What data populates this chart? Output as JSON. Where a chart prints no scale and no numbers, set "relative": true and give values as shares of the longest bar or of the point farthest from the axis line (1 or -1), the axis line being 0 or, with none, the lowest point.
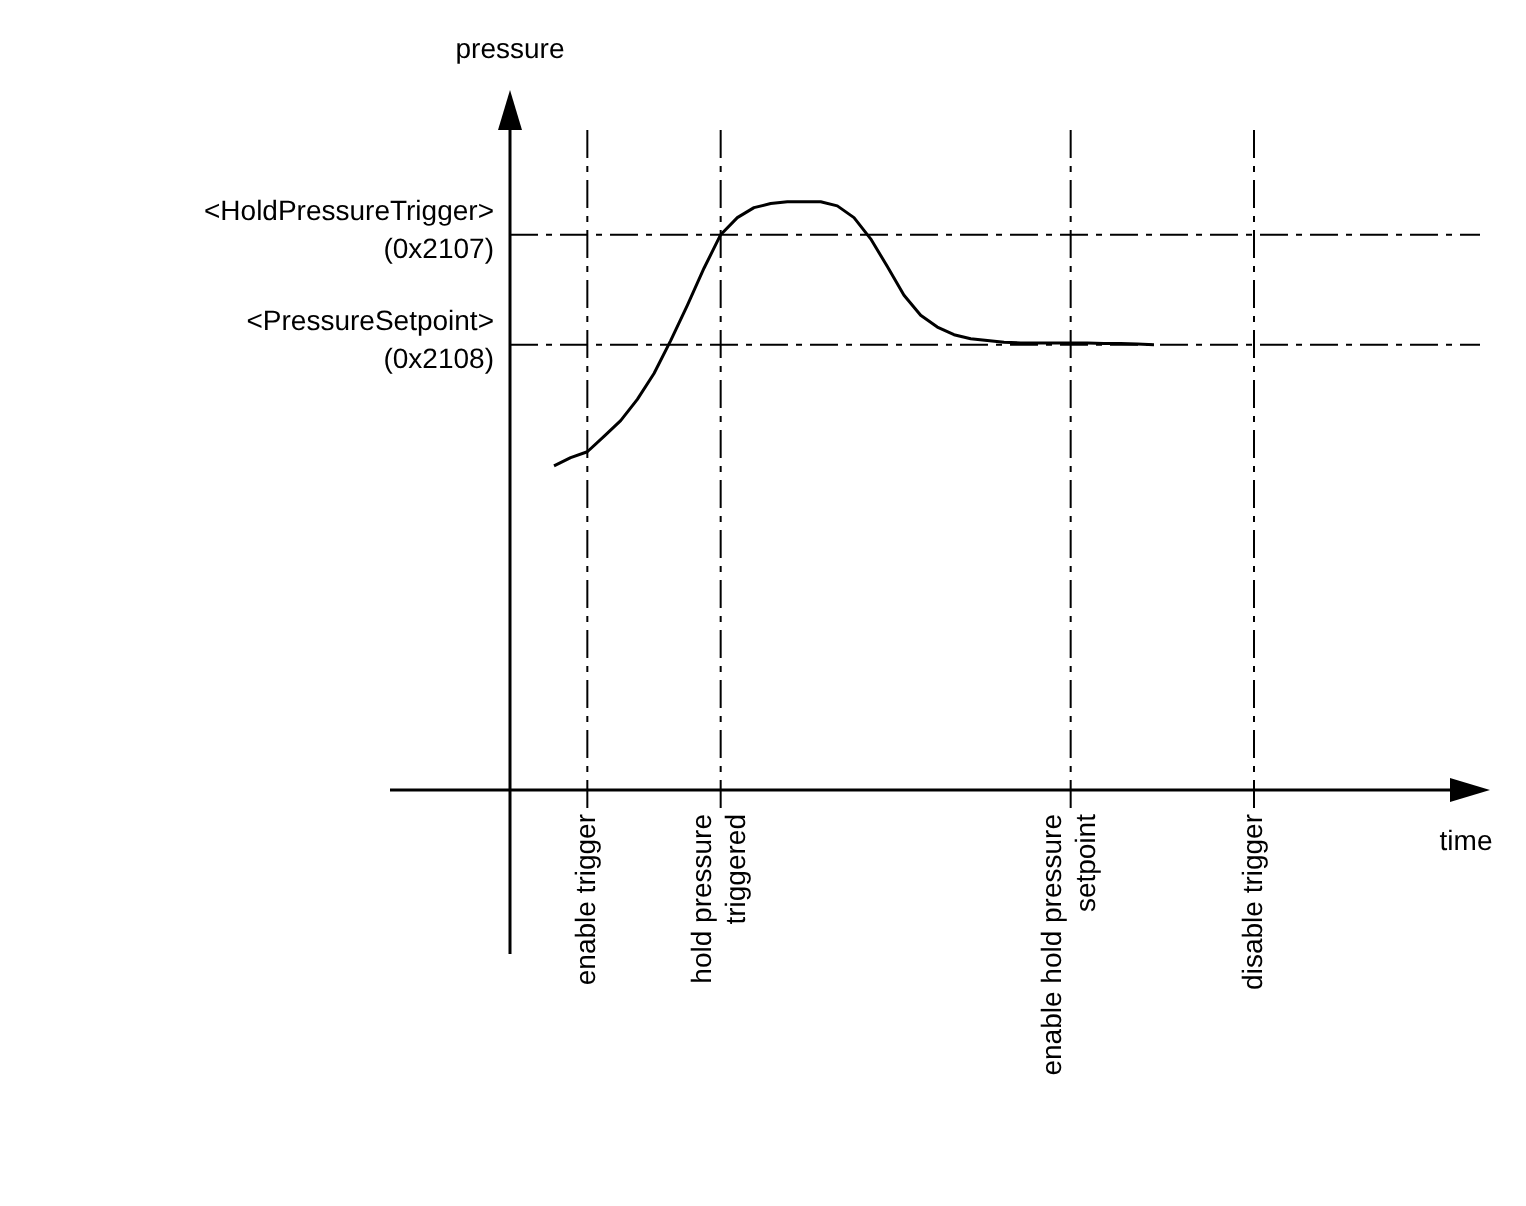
{
  "chart_data": {
    "type": "line",
    "relative": true,
    "legend": false,
    "marker": "none",
    "line_style": "solid",
    "annotations": [
      "pressure",
      "time"
    ],
    "categories": [
      null,
      null,
      "enable trigger",
      null,
      null,
      null,
      null,
      null,
      null,
      null,
      "hold pressure\ntriggered",
      null,
      null,
      null,
      null,
      null,
      null,
      null,
      null,
      null,
      null,
      null,
      null,
      null,
      null,
      null,
      null,
      null,
      null,
      null,
      null,
      "enable hold pressure\nsetpoint",
      null,
      null,
      null,
      null,
      null,
      null,
      null,
      null,
      null,
      null,
      "disable trigger"
    ],
    "series": [
      {
        "color": "#000000",
        "values": [
          0.551,
          0.565,
          0.575,
          0.601,
          0.628,
          0.664,
          0.708,
          0.764,
          0.824,
          0.887,
          0.944,
          0.973,
          0.99,
          0.997,
          1,
          1,
          1,
          0.993,
          0.973,
          0.937,
          0.89,
          0.841,
          0.807,
          0.787,
          0.774,
          0.767,
          0.764,
          0.761,
          0.76,
          0.76,
          0.76,
          0.76,
          0.76,
          0.759,
          0.759,
          0.758,
          0.757,
          null,
          null,
          null,
          null,
          null,
          null
        ]
      }
    ],
    "ref_lines": [
      {
        "axis": "y",
        "value": 0.944,
        "label": "<HoldPressureTrigger>\n(0x2107)",
        "line_style": "dashed",
        "color": "#000000"
      },
      {
        "axis": "y",
        "value": 0.757,
        "label": "<PressureSetpoint>\n(0x2108)",
        "line_style": "dashed",
        "color": "#000000"
      },
      {
        "axis": "x",
        "value": "enable trigger",
        "line_style": "dashed",
        "color": "#000000"
      },
      {
        "axis": "x",
        "value": "hold pressure\ntriggered",
        "line_style": "dashed",
        "color": "#000000"
      },
      {
        "axis": "x",
        "value": "enable hold pressure\nsetpoint",
        "line_style": "dashed",
        "color": "#000000"
      },
      {
        "axis": "x",
        "value": "disable trigger",
        "line_style": "dashed",
        "color": "#000000"
      }
    ]
  }
}
